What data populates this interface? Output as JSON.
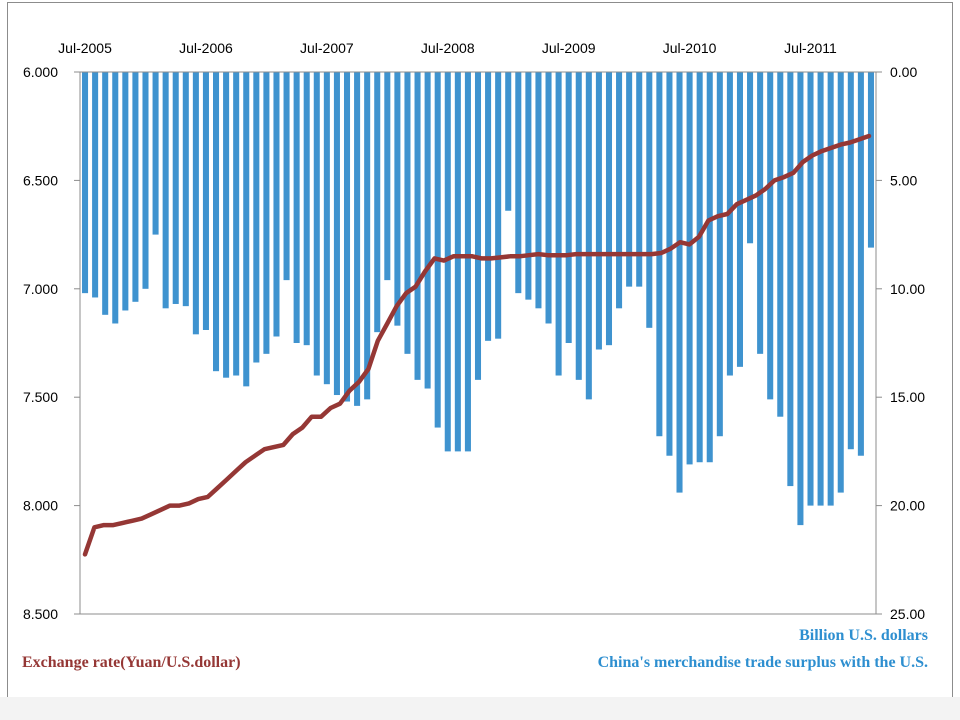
{
  "chart_data": {
    "type": "bar+line",
    "x_tick_labels": [
      "Jul-2005",
      "Jul-2006",
      "Jul-2007",
      "Jul-2008",
      "Jul-2009",
      "Jul-2010",
      "Jul-2011"
    ],
    "left_axis": {
      "ticks": [
        "6.000",
        "6.500",
        "7.000",
        "7.500",
        "8.000",
        "8.500"
      ],
      "range": [
        6.0,
        8.5
      ],
      "reversed": true
    },
    "right_axis": {
      "ticks": [
        "0.00",
        "5.00",
        "10.00",
        "15.00",
        "20.00",
        "25.00"
      ],
      "range": [
        0,
        25
      ],
      "reversed": true
    },
    "legend": {
      "bar_unit": "Billion  U.S. dollars",
      "bar_series": "China's merchandise trade surplus with the U.S.",
      "line_series": "Exchange rate(Yuan/U.S.dollar)"
    },
    "colors": {
      "bars": "#3f93cf",
      "line": "#953735"
    },
    "series": [
      {
        "name": "China's merchandise trade surplus with the U.S.",
        "axis": "right",
        "values": [
          10.2,
          10.4,
          11.2,
          11.6,
          11.0,
          10.6,
          10.0,
          7.5,
          10.9,
          10.7,
          10.8,
          12.1,
          11.9,
          13.8,
          14.1,
          14.0,
          14.5,
          13.4,
          13.0,
          12.2,
          9.6,
          12.5,
          12.6,
          14.0,
          14.4,
          14.9,
          15.2,
          15.4,
          15.1,
          12.0,
          9.6,
          11.7,
          13.0,
          14.2,
          14.6,
          16.4,
          17.5,
          17.5,
          17.5,
          14.2,
          12.4,
          12.3,
          6.4,
          10.2,
          10.5,
          10.9,
          11.6,
          14.0,
          12.5,
          14.2,
          15.1,
          12.8,
          12.6,
          10.9,
          9.9,
          9.9,
          11.8,
          16.8,
          17.7,
          19.4,
          18.1,
          18.0,
          18.0,
          16.8,
          14.0,
          13.6,
          7.9,
          13.0,
          15.1,
          15.9,
          19.1,
          20.9,
          20.0,
          20.0,
          20.0,
          19.4,
          17.4,
          17.7,
          8.1
        ]
      },
      {
        "name": "Exchange rate(Yuan/U.S.dollar)",
        "axis": "left",
        "values": [
          8.225,
          8.1,
          8.09,
          8.09,
          8.08,
          8.07,
          8.06,
          8.04,
          8.02,
          8.0,
          8.0,
          7.99,
          7.97,
          7.96,
          7.92,
          7.88,
          7.84,
          7.8,
          7.77,
          7.74,
          7.73,
          7.72,
          7.67,
          7.64,
          7.59,
          7.59,
          7.55,
          7.53,
          7.47,
          7.43,
          7.37,
          7.24,
          7.16,
          7.08,
          7.02,
          6.99,
          6.92,
          6.86,
          6.87,
          6.85,
          6.85,
          6.85,
          6.86,
          6.86,
          6.855,
          6.85,
          6.85,
          6.845,
          6.84,
          6.845,
          6.845,
          6.845,
          6.84,
          6.84,
          6.84,
          6.84,
          6.84,
          6.84,
          6.84,
          6.84,
          6.84,
          6.835,
          6.815,
          6.785,
          6.795,
          6.76,
          6.685,
          6.665,
          6.655,
          6.61,
          6.59,
          6.57,
          6.54,
          6.5,
          6.485,
          6.465,
          6.415,
          6.385,
          6.365,
          6.35,
          6.335,
          6.325,
          6.31,
          6.295
        ]
      }
    ]
  }
}
